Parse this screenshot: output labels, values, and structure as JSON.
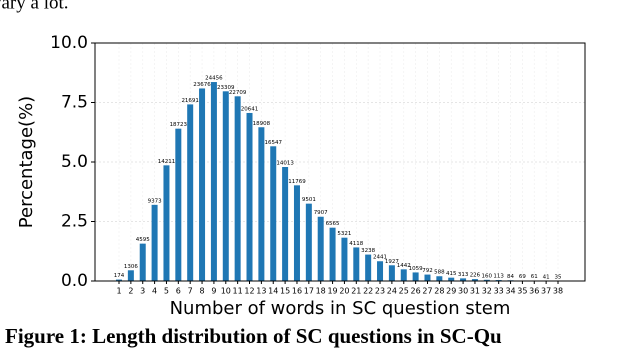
{
  "intro_text": "vary a lot.",
  "chart_data": {
    "type": "bar",
    "ylabel": "Percentage(%)",
    "xlabel": "Number of words in SC question stem",
    "categories": [
      "1",
      "2",
      "3",
      "4",
      "5",
      "6",
      "7",
      "8",
      "9",
      "10",
      "11",
      "12",
      "13",
      "14",
      "15",
      "16",
      "17",
      "18",
      "19",
      "20",
      "21",
      "22",
      "23",
      "24",
      "25",
      "26",
      "27",
      "28",
      "29",
      "30",
      "31",
      "32",
      "33",
      "34",
      "35",
      "36",
      "37",
      "38"
    ],
    "values": [
      0.06,
      0.45,
      1.57,
      3.2,
      4.86,
      6.4,
      7.42,
      8.09,
      8.36,
      7.97,
      7.76,
      7.06,
      6.46,
      5.66,
      4.79,
      4.02,
      3.25,
      2.7,
      2.24,
      1.82,
      1.41,
      1.11,
      0.83,
      0.66,
      0.49,
      0.36,
      0.27,
      0.2,
      0.14,
      0.11,
      0.08,
      0.05,
      0.04,
      0.03,
      0.02,
      0.02,
      0.01,
      0.01
    ],
    "counts": [
      174,
      1306,
      4595,
      9373,
      14211,
      18723,
      21691,
      23676,
      24456,
      23309,
      22709,
      20641,
      18908,
      16547,
      14013,
      11769,
      9501,
      7907,
      6565,
      5321,
      4118,
      3238,
      2441,
      1927,
      1442,
      1059,
      792,
      588,
      415,
      313,
      226,
      160,
      113,
      84,
      69,
      61,
      41,
      35
    ],
    "color": "#1f77b4",
    "ylim": [
      0,
      10
    ],
    "yticks": [
      {
        "value": 0,
        "label": "0.0"
      },
      {
        "value": 2.5,
        "label": "2.5"
      },
      {
        "value": 5,
        "label": "5.0"
      },
      {
        "value": 7.5,
        "label": "7.5"
      },
      {
        "value": 10,
        "label": "10.0"
      }
    ],
    "grid": true
  },
  "caption": "Figure 1: Length distribution of SC questions in SC-Qu"
}
